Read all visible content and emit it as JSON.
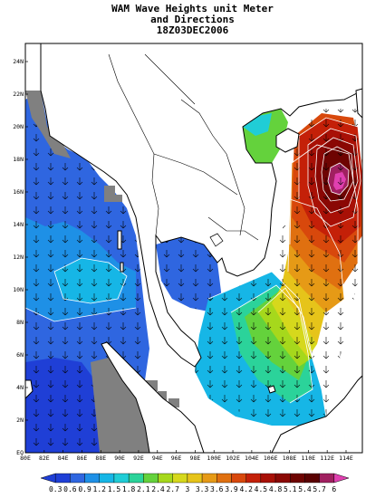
{
  "title": {
    "line1": "WAM Wave Heights unit Meter",
    "line2": "and Directions",
    "line3": "18Z03DEC2006"
  },
  "map": {
    "lon_labels": [
      "80E",
      "82E",
      "84E",
      "86E",
      "88E",
      "90E",
      "92E",
      "94E",
      "96E",
      "98E",
      "100E",
      "102E",
      "104E",
      "106E",
      "108E",
      "110E",
      "112E",
      "114E"
    ],
    "lat_labels": [
      "EQ",
      "2N",
      "4N",
      "6N",
      "8N",
      "10N",
      "12N",
      "14N",
      "16N",
      "18N",
      "20N",
      "22N",
      "24N"
    ],
    "land_color": "#ffffff",
    "no_data_color": "#808080",
    "coastline_color": "#000000",
    "peak_marker": "max wave height near 113E 16N"
  },
  "colorbar": {
    "labels": [
      "0.3",
      "0.6",
      "0.9",
      "1.2",
      "1.5",
      "1.8",
      "2.1",
      "2.4",
      "2.7",
      "3",
      "3.3",
      "3.6",
      "3.9",
      "4.2",
      "4.5",
      "4.8",
      "5.1",
      "5.4",
      "5.7",
      "6"
    ],
    "colors": [
      "#1f3fd6",
      "#2f66e0",
      "#1e90e6",
      "#16b6e6",
      "#20cdd6",
      "#2bd39a",
      "#64d23c",
      "#a6d81c",
      "#d6d81c",
      "#e6c41a",
      "#e69a16",
      "#e07010",
      "#d8480c",
      "#c42008",
      "#a81006",
      "#8a0804",
      "#6e0402",
      "#5a0202",
      "#a02060",
      "#e040b0"
    ]
  }
}
